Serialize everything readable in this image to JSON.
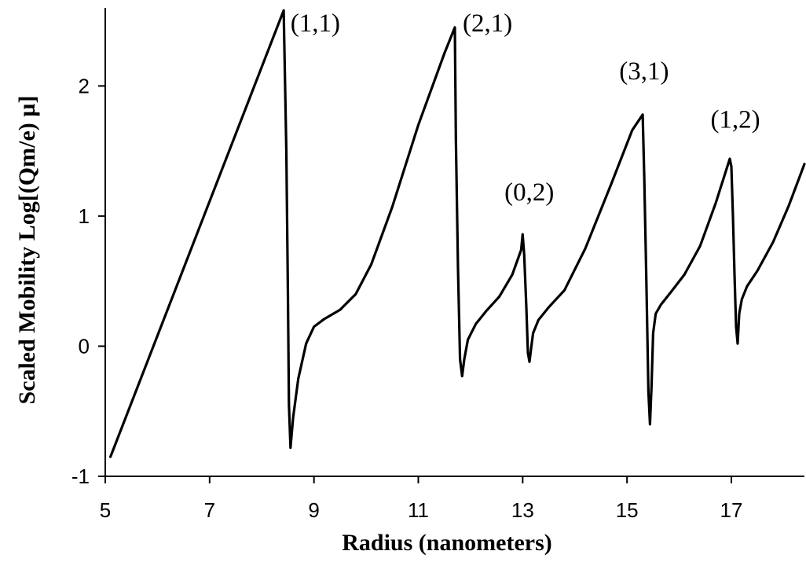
{
  "chart_data": {
    "type": "line",
    "title": "",
    "xlabel": "Radius (nanometers)",
    "ylabel": "Scaled Mobility  Log[(Qm/e) µ]",
    "xlim": [
      5,
      18.4
    ],
    "ylim": [
      -1,
      2.6
    ],
    "xticks": [
      5,
      7,
      9,
      11,
      13,
      15,
      17
    ],
    "yticks": [
      -1,
      0,
      1,
      2
    ],
    "grid": false,
    "legend": "none",
    "series": [
      {
        "x": [
          5.1,
          8.42,
          8.47,
          8.5,
          8.52,
          8.55,
          8.6,
          8.7,
          8.85,
          9.0,
          9.2,
          9.5,
          9.8,
          10.1,
          10.5,
          11.0,
          11.5,
          11.7,
          11.72,
          11.76,
          11.8,
          11.84,
          11.88,
          11.95,
          12.1,
          12.3,
          12.55,
          12.8,
          12.97,
          13.0,
          13.03,
          13.07,
          13.1,
          13.13,
          13.16,
          13.2,
          13.3,
          13.5,
          13.8,
          14.2,
          14.7,
          15.1,
          15.3,
          15.33,
          15.37,
          15.41,
          15.44,
          15.47,
          15.5,
          15.55,
          15.65,
          15.85,
          16.1,
          16.4,
          16.7,
          16.97,
          17.0,
          17.03,
          17.06,
          17.09,
          17.12,
          17.15,
          17.2,
          17.3,
          17.5,
          17.8,
          18.1,
          18.4
        ],
        "y": [
          -0.85,
          2.58,
          1.5,
          0.4,
          -0.45,
          -0.78,
          -0.55,
          -0.25,
          0.02,
          0.15,
          0.21,
          0.28,
          0.4,
          0.63,
          1.07,
          1.7,
          2.25,
          2.45,
          1.6,
          0.6,
          -0.1,
          -0.23,
          -0.1,
          0.05,
          0.17,
          0.27,
          0.38,
          0.55,
          0.74,
          0.86,
          0.7,
          0.3,
          -0.05,
          -0.12,
          -0.02,
          0.1,
          0.2,
          0.3,
          0.43,
          0.75,
          1.25,
          1.66,
          1.78,
          1.3,
          0.5,
          -0.35,
          -0.6,
          -0.3,
          0.1,
          0.25,
          0.32,
          0.42,
          0.55,
          0.77,
          1.1,
          1.44,
          1.38,
          1.0,
          0.55,
          0.15,
          0.02,
          0.25,
          0.36,
          0.46,
          0.58,
          0.8,
          1.08,
          1.4
        ]
      }
    ],
    "annotations": [
      {
        "text": "(1,1)",
        "x": 8.55,
        "y": 2.42
      },
      {
        "text": "(2,1)",
        "x": 11.85,
        "y": 2.42
      },
      {
        "text": "(0,2)",
        "x": 12.65,
        "y": 1.12
      },
      {
        "text": "(3,1)",
        "x": 14.85,
        "y": 2.05
      },
      {
        "text": "(1,2)",
        "x": 16.6,
        "y": 1.68
      }
    ]
  }
}
